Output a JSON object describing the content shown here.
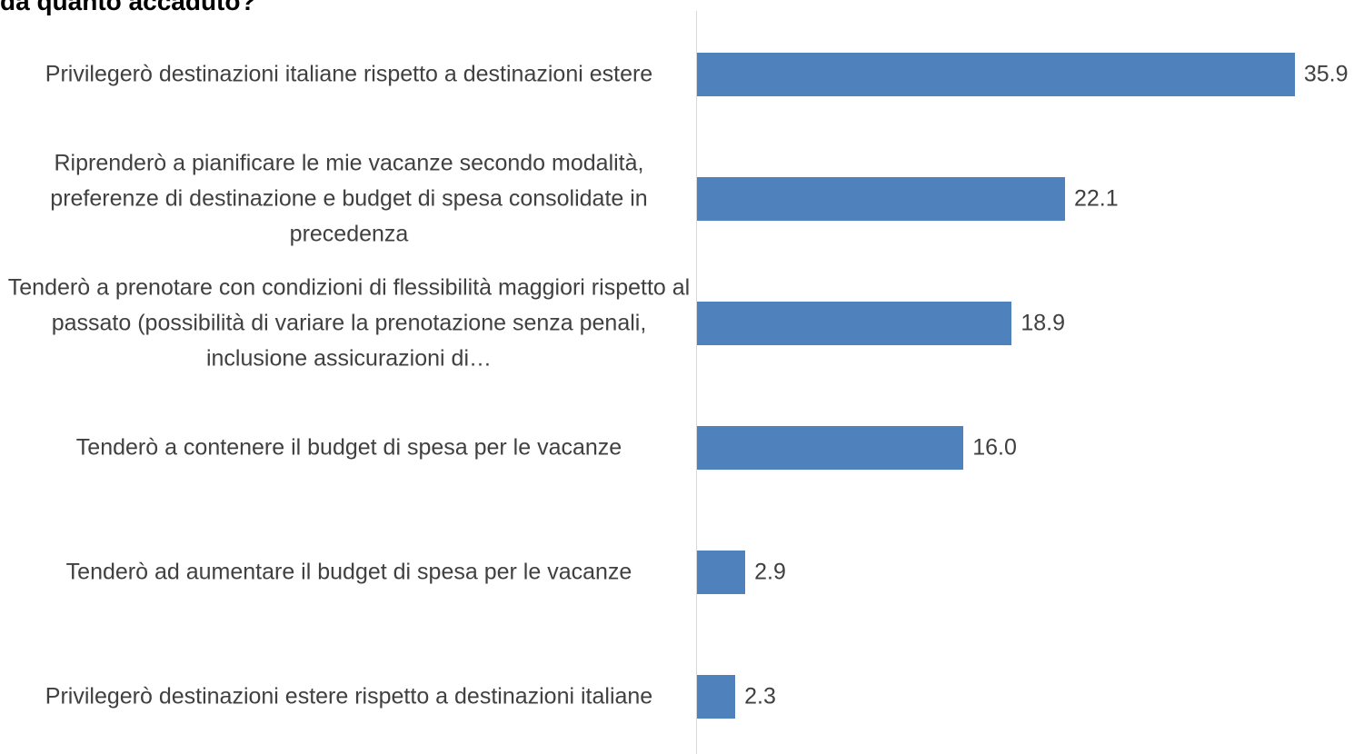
{
  "chart_data": {
    "type": "bar",
    "orientation": "horizontal",
    "title": "da quanto accaduto?",
    "categories": [
      "Privilegerò destinazioni italiane rispetto a destinazioni estere",
      "Riprenderò a pianificare le mie vacanze secondo modalità, preferenze di destinazione e budget di spesa consolidate in precedenza",
      "Tenderò a prenotare con condizioni di flessibilità maggiori rispetto al passato (possibilità di variare la prenotazione senza penali, inclusione assicurazioni di…",
      "Tenderò a contenere il budget di spesa per le vacanze",
      "Tenderò ad aumentare il budget di spesa per le vacanze",
      "Privilegerò destinazioni estere rispetto a destinazioni italiane"
    ],
    "values": [
      35.9,
      22.1,
      18.9,
      16.0,
      2.9,
      2.3
    ],
    "value_labels": [
      "35.9",
      "22.1",
      "18.9",
      "16.0",
      "2.9",
      "2.3"
    ],
    "color": "#4f81bd",
    "xlim": [
      0,
      40
    ]
  }
}
